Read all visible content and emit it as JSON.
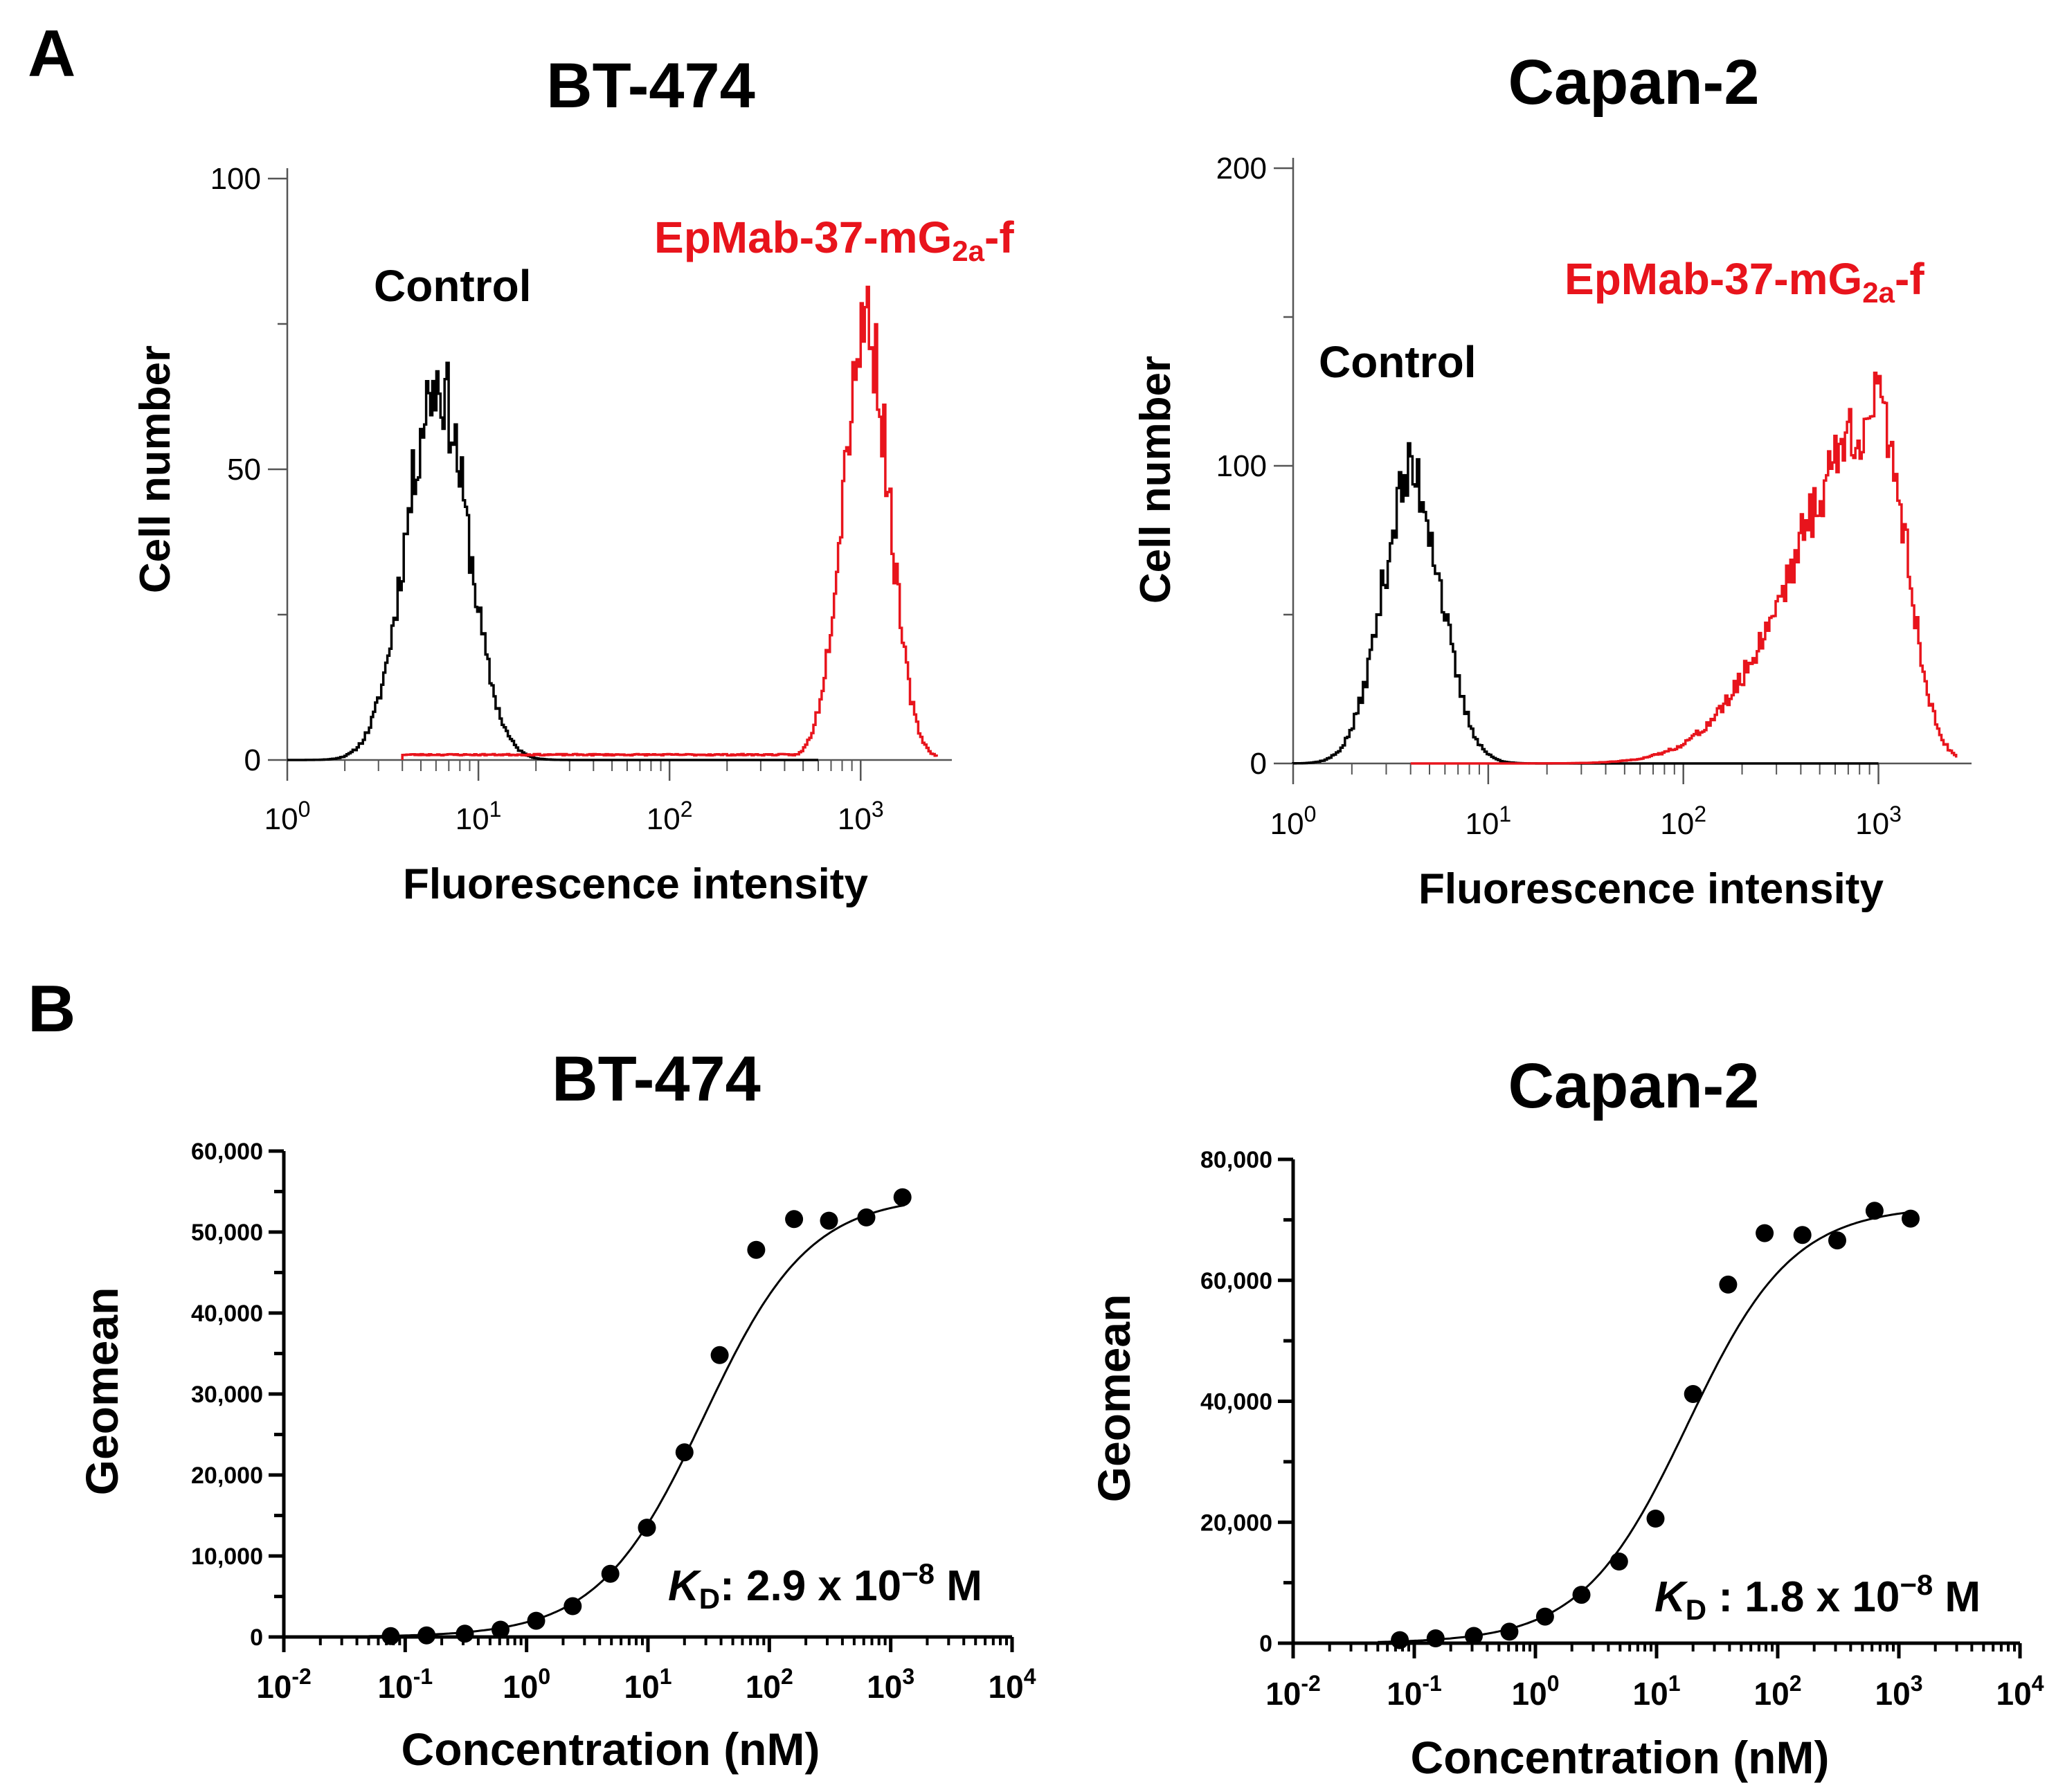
{
  "panels": {
    "A": "A",
    "B": "B"
  },
  "colors": {
    "control": "#000000",
    "antibody": "#e8141c"
  },
  "chart_data": [
    {
      "type": "histogram",
      "panel": "A",
      "title": "BT-474",
      "xlabel": "Fluorescence intensity",
      "ylabel": "Cell number",
      "xscale": "log",
      "xlim": [
        1,
        3000
      ],
      "ylim": [
        0,
        100
      ],
      "yticks": [
        "0",
        "50",
        "100"
      ],
      "xticks": [
        {
          "base": "10",
          "exp": "0"
        },
        {
          "base": "10",
          "exp": "1"
        },
        {
          "base": "10",
          "exp": "2"
        },
        {
          "base": "10",
          "exp": "3"
        }
      ],
      "labels": {
        "control": "Control",
        "antibody_main": "EpMab-37-mG",
        "antibody_sub": "2a",
        "antibody_suffix": "-f"
      },
      "series": [
        {
          "name": "Control",
          "color": "control",
          "peak_x": 6,
          "peak_y": 65,
          "sigma": 0.16,
          "from": 1,
          "to": 600,
          "seed": 11
        },
        {
          "name": "EpMab-37-mG2a-f",
          "color": "antibody",
          "peak_x": 1050,
          "peak_y": 76,
          "sigma": 0.12,
          "left_tail": 0.02,
          "from": 4,
          "to": 2500,
          "seed": 23
        }
      ]
    },
    {
      "type": "histogram",
      "panel": "A",
      "title": "Capan-2",
      "xlabel": "Fluorescence intensity",
      "ylabel": "Cell number",
      "xscale": "log",
      "xlim": [
        1,
        3000
      ],
      "ylim": [
        0,
        200
      ],
      "yticks": [
        "0",
        "100",
        "200"
      ],
      "xticks": [
        {
          "base": "10",
          "exp": "0"
        },
        {
          "base": "10",
          "exp": "1"
        },
        {
          "base": "10",
          "exp": "2"
        },
        {
          "base": "10",
          "exp": "3"
        }
      ],
      "labels": {
        "control": "Control",
        "antibody_main": "EpMab-37-mG",
        "antibody_sub": "2a",
        "antibody_suffix": "-f"
      },
      "series": [
        {
          "name": "Control",
          "color": "control",
          "peak_x": 4,
          "peak_y": 97,
          "sigma": 0.15,
          "from": 1,
          "to": 1000,
          "seed": 37
        },
        {
          "name": "EpMab-37-mG2a-f",
          "color": "antibody",
          "peak_x": 1000,
          "peak_y": 118,
          "sigma": 0.14,
          "left_sigma": 0.42,
          "from": 4,
          "to": 2500,
          "seed": 41
        }
      ]
    },
    {
      "type": "scatter",
      "panel": "B",
      "title": "BT-474",
      "xlabel": "Concentration (nM)",
      "ylabel": "Geomean",
      "xscale": "log",
      "xlim": [
        0.01,
        10000
      ],
      "ylim": [
        0,
        60000
      ],
      "yticks": [
        "0",
        "10,000",
        "20,000",
        "30,000",
        "40,000",
        "50,000",
        "60,000"
      ],
      "xticks": [
        {
          "base": "10",
          "exp": "-2"
        },
        {
          "base": "10",
          "exp": "-1"
        },
        {
          "base": "10",
          "exp": "0"
        },
        {
          "base": "10",
          "exp": "1"
        },
        {
          "base": "10",
          "exp": "2"
        },
        {
          "base": "10",
          "exp": "3"
        },
        {
          "base": "10",
          "exp": "4"
        }
      ],
      "x": [
        0.076,
        0.15,
        0.31,
        0.61,
        1.2,
        2.4,
        4.9,
        9.8,
        20,
        39,
        78,
        160,
        310,
        630,
        1250
      ],
      "y": [
        100,
        200,
        400,
        900,
        2000,
        3800,
        7800,
        13500,
        22800,
        34800,
        47800,
        51600,
        51400,
        51800,
        54300
      ],
      "fit": {
        "Bmax": 54500,
        "KD": 29
      },
      "kd_text": {
        "K": "K",
        "sub": "D",
        "colon": ":",
        "value": " 2.9 x 10",
        "exp": "−8",
        "unit": " M"
      }
    },
    {
      "type": "scatter",
      "panel": "B",
      "title": "Capan-2",
      "xlabel": "Concentration (nM)",
      "ylabel": "Geomean",
      "xscale": "log",
      "xlim": [
        0.01,
        10000
      ],
      "ylim": [
        0,
        80000
      ],
      "yticks": [
        "0",
        "20,000",
        "40,000",
        "60,000",
        "80,000"
      ],
      "xticks": [
        {
          "base": "10",
          "exp": "-2"
        },
        {
          "base": "10",
          "exp": "-1"
        },
        {
          "base": "10",
          "exp": "0"
        },
        {
          "base": "10",
          "exp": "1"
        },
        {
          "base": "10",
          "exp": "2"
        },
        {
          "base": "10",
          "exp": "3"
        },
        {
          "base": "10",
          "exp": "4"
        }
      ],
      "x": [
        0.076,
        0.15,
        0.31,
        0.61,
        1.2,
        2.4,
        4.9,
        9.8,
        20,
        39,
        78,
        160,
        310,
        630,
        1250
      ],
      "y": [
        500,
        800,
        1200,
        1900,
        4400,
        8000,
        13500,
        20600,
        41200,
        59300,
        67800,
        67500,
        66600,
        71500,
        70200
      ],
      "fit": {
        "Bmax": 72300,
        "KD": 18
      },
      "kd_text": {
        "K": "K",
        "sub": "D",
        "colon": " :",
        "value": " 1.8 x 10",
        "exp": "−8",
        "unit": " M"
      }
    }
  ]
}
